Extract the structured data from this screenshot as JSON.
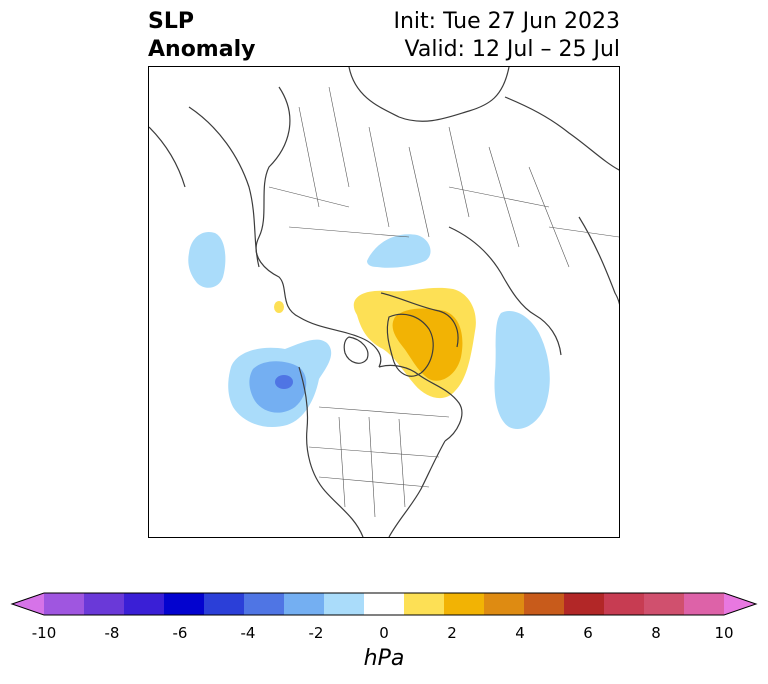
{
  "title": {
    "line1": "SLP",
    "line2": "Anomaly",
    "init": "Init: Tue 27 Jun 2023",
    "valid": "Valid: 12 Jul – 25 Jul"
  },
  "colorbar": {
    "units": "hPa",
    "ticks": [
      "-10",
      "-8",
      "-6",
      "-4",
      "-2",
      "0",
      "2",
      "4",
      "6",
      "8",
      "10"
    ],
    "colors": [
      "#d673e8",
      "#9f56e0",
      "#6a39d8",
      "#3a1fd6",
      "#0303cf",
      "#2b3fd8",
      "#4f75e4",
      "#74aff2",
      "#aadcfa",
      "#ffffff",
      "#fde055",
      "#f2b304",
      "#de8b12",
      "#c85b1b",
      "#b22727",
      "#c73c52",
      "#d0506e",
      "#dd62a8",
      "#e878e0"
    ]
  }
}
